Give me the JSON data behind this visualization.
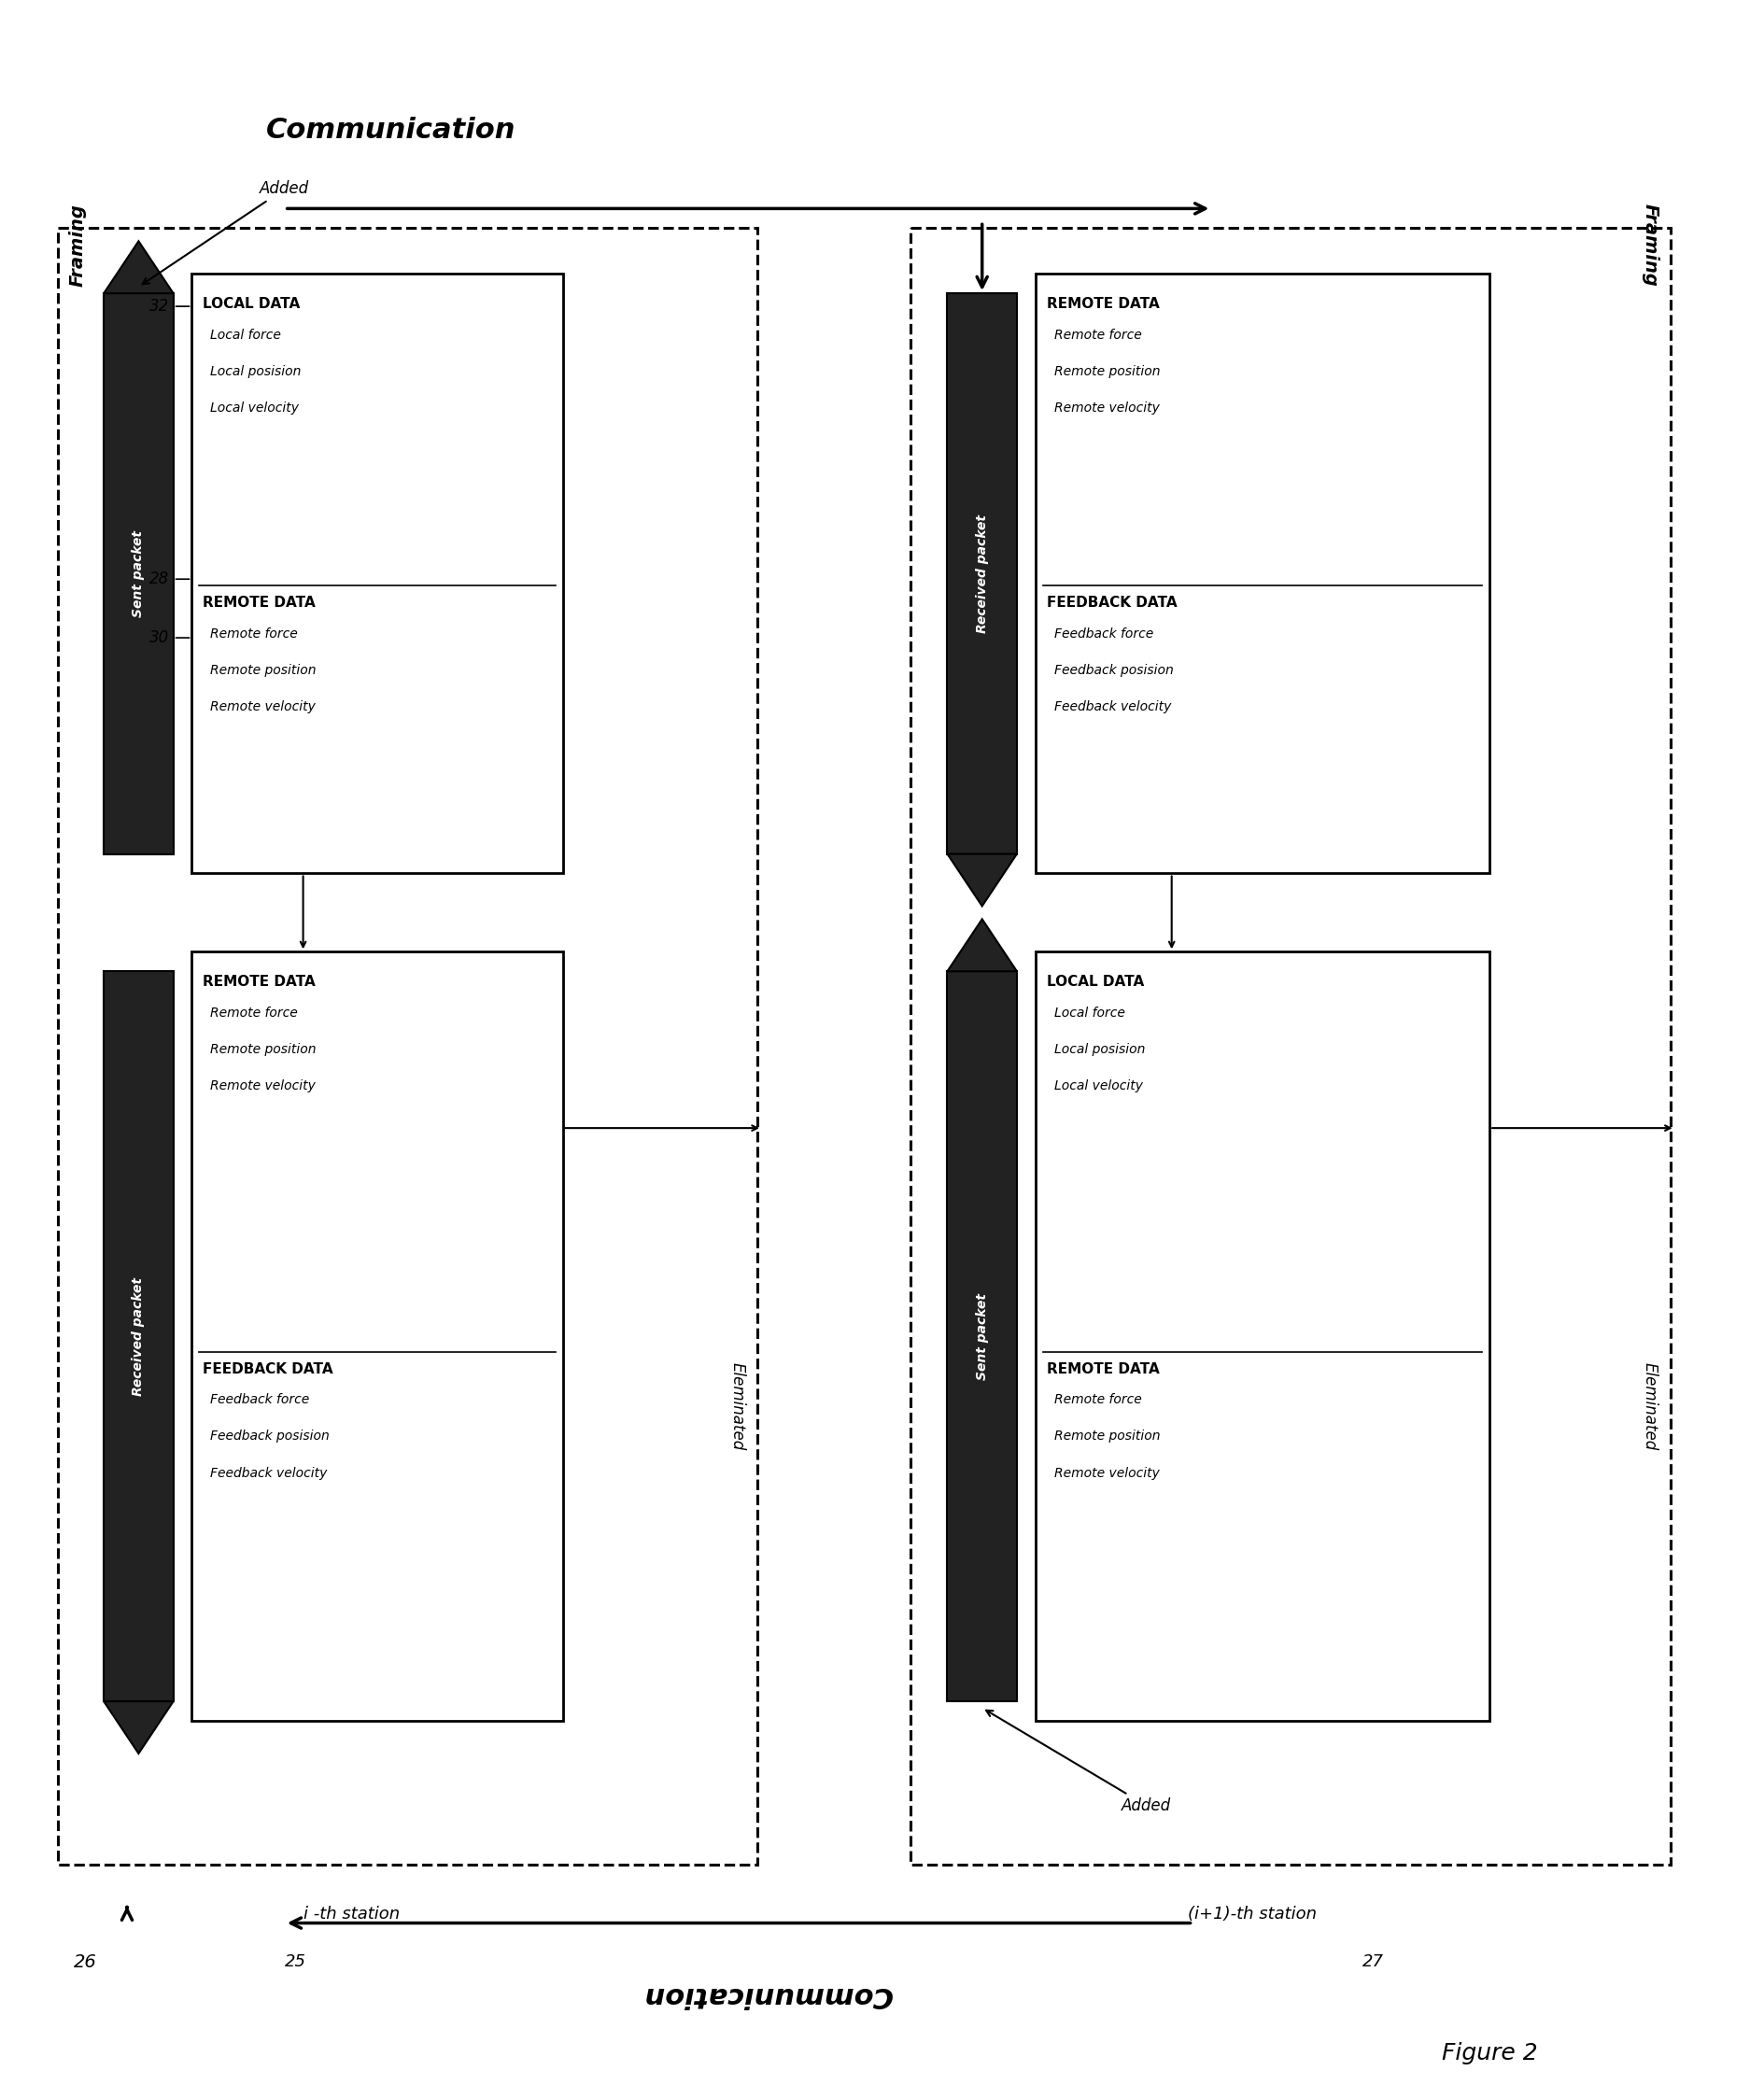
{
  "bg_color": "#ffffff",
  "fig_label": "Figure 2",
  "comm_top": "Communication",
  "comm_bottom": "Communication",
  "framing_left": "Framing",
  "framing_right": "Framing",
  "station_i": "i-th station",
  "station_i1": "(i+1)-th station",
  "label_25": "25",
  "label_26": "26",
  "label_27": "27",
  "label_28": "28",
  "label_30": "30",
  "label_32": "32",
  "added": "Added",
  "eliminated": "Eleminated",
  "sent_packet": "Sent packet",
  "received_packet": "Received packet",
  "local_data_title": "LOCAL DATA",
  "local_data_items": [
    "Local force",
    "Local posision",
    "Local velocity"
  ],
  "remote_data_title": "REMOTE DATA",
  "remote_data_items": [
    "Remote force",
    "Remote position",
    "Remote velocity"
  ],
  "feedback_data_title": "FEEDBACK DATA",
  "feedback_data_items": [
    "Feedback force",
    "Feedback posision",
    "Feedback velocity"
  ],
  "dark_color": "#222222",
  "lw_outer": 2.0,
  "lw_inner": 1.8
}
